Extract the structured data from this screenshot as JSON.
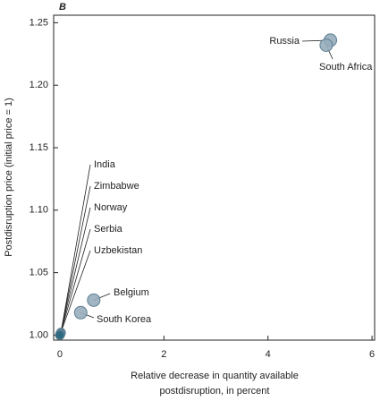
{
  "chart_data": {
    "type": "scatter",
    "title": "B",
    "xlabel": [
      "Relative decrease in quantity available",
      "postdisruption, in percent"
    ],
    "ylabel": "Postdisruption price (initial price = 1)",
    "labels": [
      "Russia",
      "South Africa",
      "India",
      "Zimbabwe",
      "Norway",
      "Serbia",
      "Uzbekistan",
      "Belgium",
      "South Korea"
    ],
    "x": [
      5.2,
      5.12,
      0.02,
      0.015,
      0.01,
      0.005,
      0.0,
      0.65,
      0.4
    ],
    "values": [
      1.236,
      1.232,
      1.002,
      1.0015,
      1.001,
      1.0005,
      1.0,
      1.028,
      1.018
    ],
    "color": "#97adbd",
    "xlim": [
      -0.12,
      6.05
    ],
    "xticks": [
      0,
      2,
      4,
      6
    ],
    "ylim": [
      0.996,
      1.256
    ],
    "yticks": [
      {
        "value": 1.0,
        "label": "1.00"
      },
      1.05,
      {
        "value": 1.1,
        "label": "1.10"
      },
      1.15,
      {
        "value": 1.2,
        "label": "1.20"
      },
      1.25
    ]
  }
}
